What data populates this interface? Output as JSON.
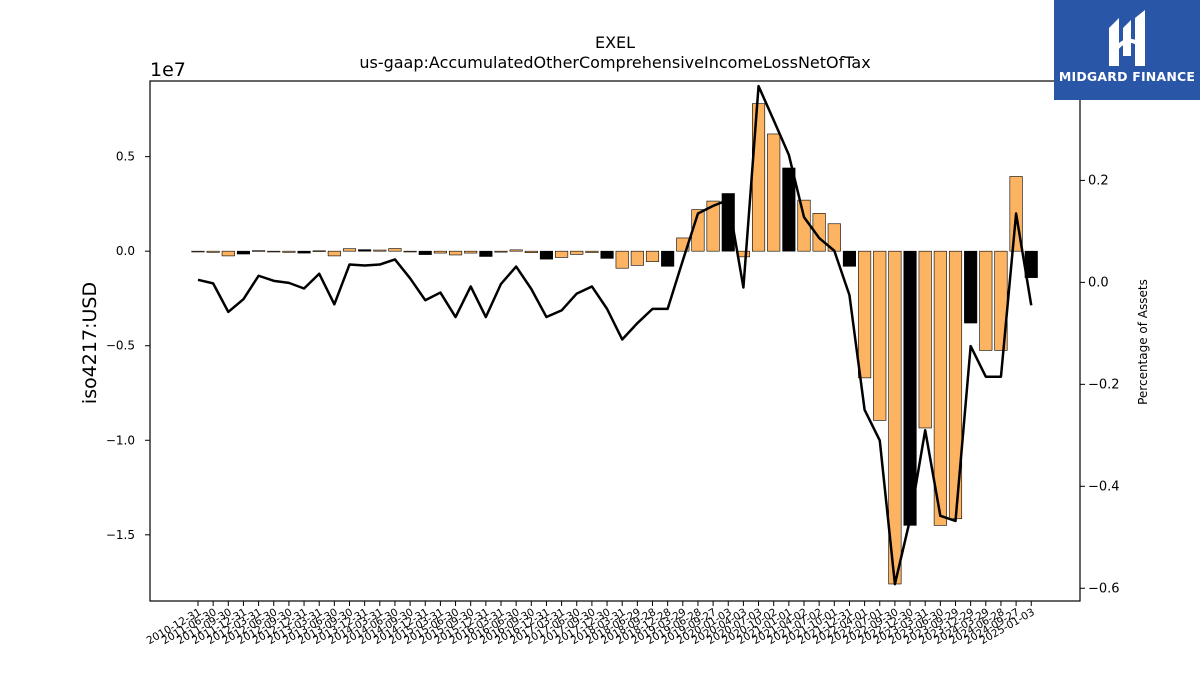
{
  "chart_data": {
    "type": "bar+line",
    "title": "EXEL",
    "subtitle": "us-gaap:AccumulatedOtherComprehensiveIncomeLossNetOfTax",
    "ylabel": "iso4217:USD",
    "y2label": "Percentage of Assets",
    "y_offset_label": "1e7",
    "ylim": [
      -18500000,
      9000000
    ],
    "y2lim": [
      -0.625,
      0.395
    ],
    "yticks": [
      0.5,
      0.0,
      -0.5,
      -1.0,
      -1.5
    ],
    "yticks_scale": 10000000,
    "y2ticks": [
      0.2,
      0.0,
      -0.2,
      -0.4,
      -0.6
    ],
    "categories": [
      "2010-12-31",
      "2011-06-30",
      "2011-09-30",
      "2011-12-31",
      "2012-03-31",
      "2012-06-30",
      "2012-09-30",
      "2012-12-31",
      "2013-03-31",
      "2013-06-30",
      "2013-09-30",
      "2013-12-31",
      "2014-03-31",
      "2014-06-30",
      "2014-09-30",
      "2014-12-31",
      "2015-03-31",
      "2015-06-30",
      "2015-09-30",
      "2015-12-31",
      "2016-03-31",
      "2016-06-30",
      "2016-09-30",
      "2016-12-31",
      "2017-03-31",
      "2017-06-30",
      "2017-09-30",
      "2017-12-30",
      "2018-03-31",
      "2018-06-29",
      "2018-09-28",
      "2018-12-28",
      "2019-03-29",
      "2019-06-28",
      "2019-09-27",
      "2020-01-03",
      "2020-04-03",
      "2020-07-03",
      "2020-10-02",
      "2021-01-01",
      "2021-04-02",
      "2021-07-02",
      "2021-10-01",
      "2021-12-31",
      "2022-04-01",
      "2022-07-01",
      "2022-09-30",
      "2022-12-30",
      "2023-03-31",
      "2023-06-30",
      "2023-09-29",
      "2023-12-29",
      "2024-03-29",
      "2024-06-28",
      "2024-09-27",
      "2025-01-03"
    ],
    "values": [
      -30000,
      -60000,
      -250000,
      -150000,
      30000,
      -20000,
      -60000,
      -100000,
      20000,
      -250000,
      130000,
      80000,
      60000,
      140000,
      -40000,
      -180000,
      -100000,
      -200000,
      -100000,
      -280000,
      -50000,
      70000,
      -80000,
      -420000,
      -330000,
      -170000,
      -70000,
      -380000,
      -900000,
      -750000,
      -550000,
      -800000,
      700000,
      2200000,
      2650000,
      3050000,
      -300000,
      7800000,
      6200000,
      4400000,
      2700000,
      2000000,
      1450000,
      -800000,
      -6700000,
      -8950000,
      -17600000,
      -14500000,
      -9350000,
      -14500000,
      -14150000,
      -3800000,
      -5250000,
      -5250000,
      3950000,
      -1400000
    ],
    "bar_colors": [
      "o",
      "o",
      "o",
      "b",
      "o",
      "o",
      "o",
      "b",
      "o",
      "o",
      "o",
      "b",
      "o",
      "o",
      "o",
      "b",
      "o",
      "o",
      "o",
      "b",
      "o",
      "o",
      "o",
      "b",
      "o",
      "o",
      "o",
      "b",
      "o",
      "o",
      "o",
      "b",
      "o",
      "o",
      "o",
      "b",
      "o",
      "o",
      "o",
      "b",
      "o",
      "o",
      "o",
      "b",
      "o",
      "o",
      "o",
      "b",
      "o",
      "o",
      "o",
      "b",
      "o",
      "o",
      "o",
      "b"
    ],
    "line_values": [
      0.005,
      -0.002,
      -0.058,
      -0.033,
      0.013,
      0.003,
      -0.001,
      -0.012,
      0.017,
      -0.043,
      0.035,
      0.033,
      0.035,
      0.045,
      0.008,
      -0.035,
      -0.02,
      -0.068,
      -0.008,
      -0.068,
      -0.003,
      0.031,
      -0.013,
      -0.068,
      -0.055,
      -0.022,
      -0.008,
      -0.052,
      -0.112,
      -0.08,
      -0.052,
      -0.052,
      0.043,
      0.135,
      0.15,
      0.162,
      -0.01,
      0.385,
      0.318,
      0.25,
      0.128,
      0.087,
      0.062,
      -0.025,
      -0.25,
      -0.31,
      -0.592,
      -0.465,
      -0.29,
      -0.458,
      -0.468,
      -0.125,
      -0.185,
      -0.185,
      0.135,
      -0.045
    ],
    "colors": {
      "orange": "#fdb462",
      "black": "#000000",
      "line": "#000000"
    },
    "grid": false
  },
  "logo": {
    "text": "MIDGARD FINANCE",
    "color": "#2a56a8"
  }
}
